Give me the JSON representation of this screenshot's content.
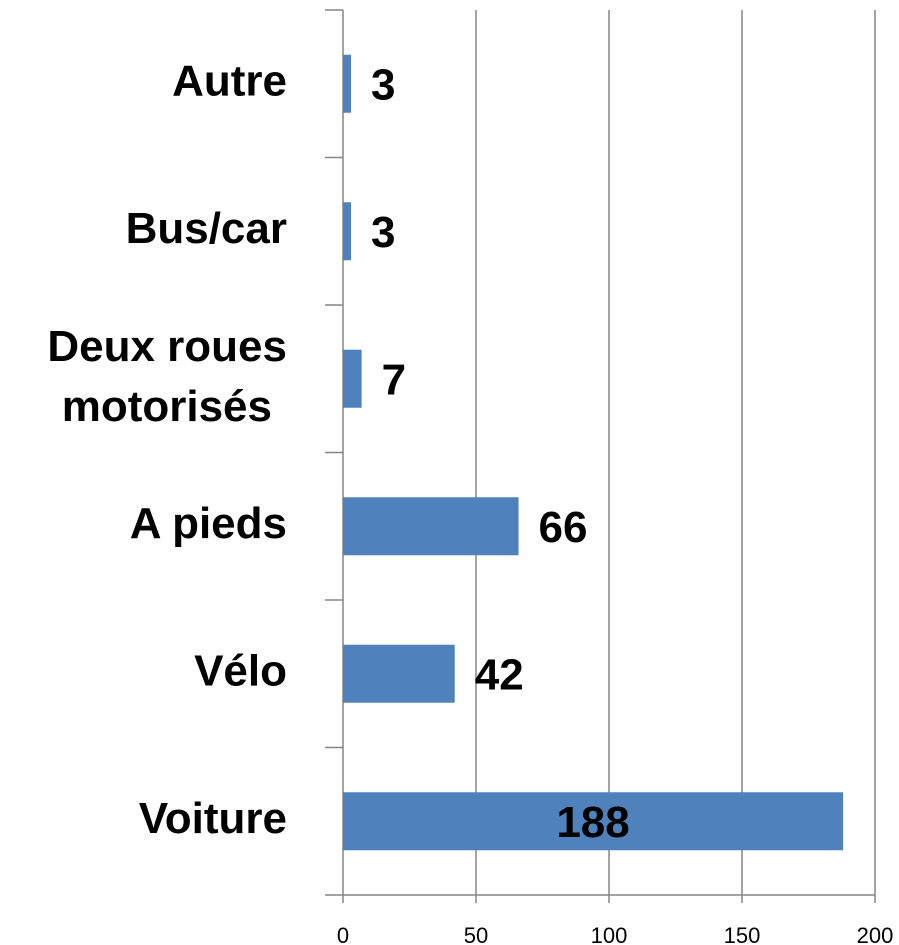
{
  "chart_data": {
    "type": "barh",
    "categories": [
      "Autre",
      "Bus/car",
      "Deux roues motorisés",
      "A pieds",
      "Vélo",
      "Voiture"
    ],
    "values": [
      3,
      3,
      7,
      66,
      42,
      188
    ],
    "color": "#4f81bd",
    "xlim": [
      0,
      200
    ],
    "xticks": [
      0,
      50,
      100,
      150,
      200
    ],
    "grid": true
  }
}
